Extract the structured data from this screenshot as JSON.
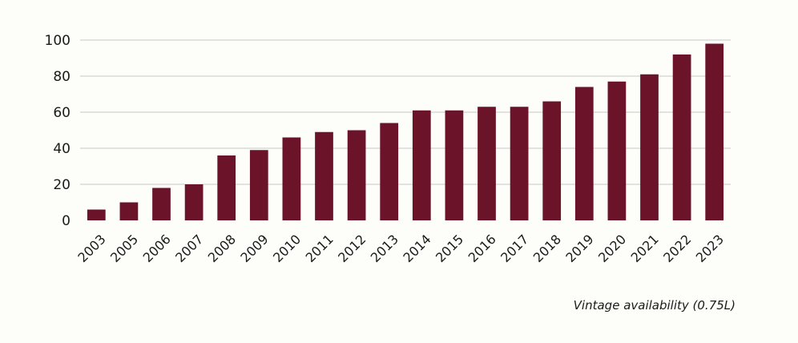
{
  "chart_data": {
    "type": "bar",
    "categories": [
      "2003",
      "2005",
      "2006",
      "2007",
      "2008",
      "2009",
      "2010",
      "2011",
      "2012",
      "2013",
      "2014",
      "2015",
      "2016",
      "2017",
      "2018",
      "2019",
      "2020",
      "2021",
      "2022",
      "2023"
    ],
    "values": [
      6,
      10,
      18,
      20,
      36,
      39,
      46,
      49,
      50,
      54,
      61,
      61,
      63,
      63,
      66,
      74,
      77,
      81,
      92,
      98
    ],
    "title": "",
    "xlabel": "",
    "ylabel": "",
    "ylim": [
      0,
      100
    ],
    "yticks": [
      0,
      20,
      40,
      60,
      80,
      100
    ],
    "grid": true,
    "bar_color": "#6b1329",
    "grid_color": "#c8c8c8",
    "caption": "Vintage availability (0.75L)"
  }
}
